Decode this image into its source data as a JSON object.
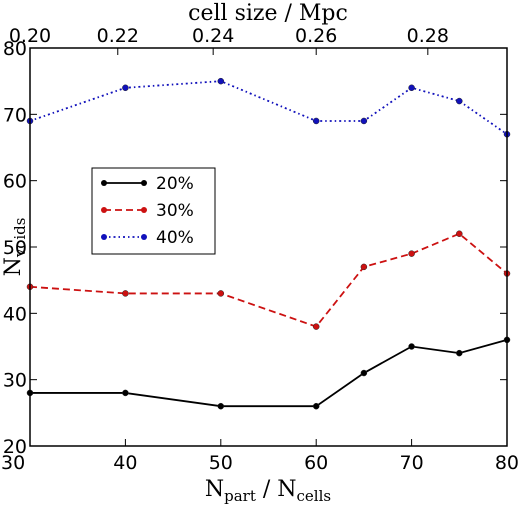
{
  "chart_data": {
    "type": "line",
    "xlabel": {
      "main": "N",
      "sub1": "part",
      "sep": " / N",
      "sub2": "cells"
    },
    "ylabel": {
      "main": "N",
      "sub": "voids"
    },
    "top_xlabel": "cell size / Mpc",
    "xlim": [
      30,
      80
    ],
    "ylim": [
      20,
      80
    ],
    "x_ticks": [
      "30",
      "40",
      "50",
      "60",
      "70",
      "80"
    ],
    "y_ticks": [
      "20",
      "30",
      "40",
      "50",
      "60",
      "70",
      "80"
    ],
    "top_ticks": [
      {
        "label": "0.20",
        "x": 30
      },
      {
        "label": "0.22",
        "x": 39.2
      },
      {
        "label": "0.24",
        "x": 49.2
      },
      {
        "label": "0.26",
        "x": 60
      },
      {
        "label": "0.28",
        "x": 71.7
      }
    ],
    "legend": {
      "position": "left-middle"
    },
    "x": [
      30,
      40,
      50,
      60,
      65,
      70,
      75,
      80
    ],
    "series": [
      {
        "name": "20%",
        "color": "#000000",
        "dash": "solid",
        "values": [
          28,
          28,
          26,
          26,
          31,
          35,
          34,
          36
        ]
      },
      {
        "name": "30%",
        "color": "#cc1111",
        "dash": "dashed",
        "values": [
          44,
          43,
          43,
          38,
          47,
          49,
          52,
          46
        ]
      },
      {
        "name": "40%",
        "color": "#1111bb",
        "dash": "dashdot",
        "values": [
          69,
          74,
          75,
          69,
          69,
          74,
          72,
          67
        ]
      }
    ]
  }
}
